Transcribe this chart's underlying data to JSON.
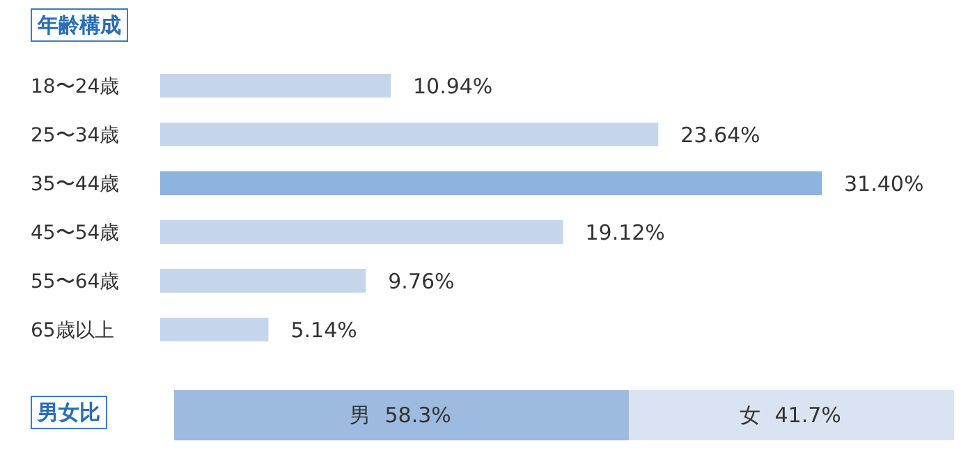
{
  "chart_data": [
    {
      "type": "bar",
      "orientation": "horizontal",
      "title": "年齢構成",
      "categories": [
        "18〜24歳",
        "25〜34歳",
        "35〜44歳",
        "45〜54歳",
        "55〜64歳",
        "65歳以上"
      ],
      "values": [
        10.94,
        23.64,
        31.4,
        19.12,
        9.76,
        5.14
      ],
      "colors": [
        "#c5d6ec",
        "#c5d6ec",
        "#8db3de",
        "#c5d6ec",
        "#c5d6ec",
        "#c5d6ec"
      ],
      "value_labels": [
        "10.94%",
        "23.64%",
        "31.40%",
        "19.12%",
        "9.76%",
        "5.14%"
      ],
      "tick_labels": "y"
    },
    {
      "type": "bar",
      "orientation": "horizontal",
      "stacked": true,
      "title": "男女比",
      "categories": [
        null
      ],
      "series": [
        {
          "name": "男",
          "color": "#9dbbe0",
          "values": [
            58.3
          ],
          "value_labels": [
            "58.3%"
          ]
        },
        {
          "name": "女",
          "color": "#d9e3f1",
          "values": [
            41.7
          ],
          "value_labels": [
            "41.7%"
          ]
        }
      ],
      "tick_labels": false
    }
  ]
}
